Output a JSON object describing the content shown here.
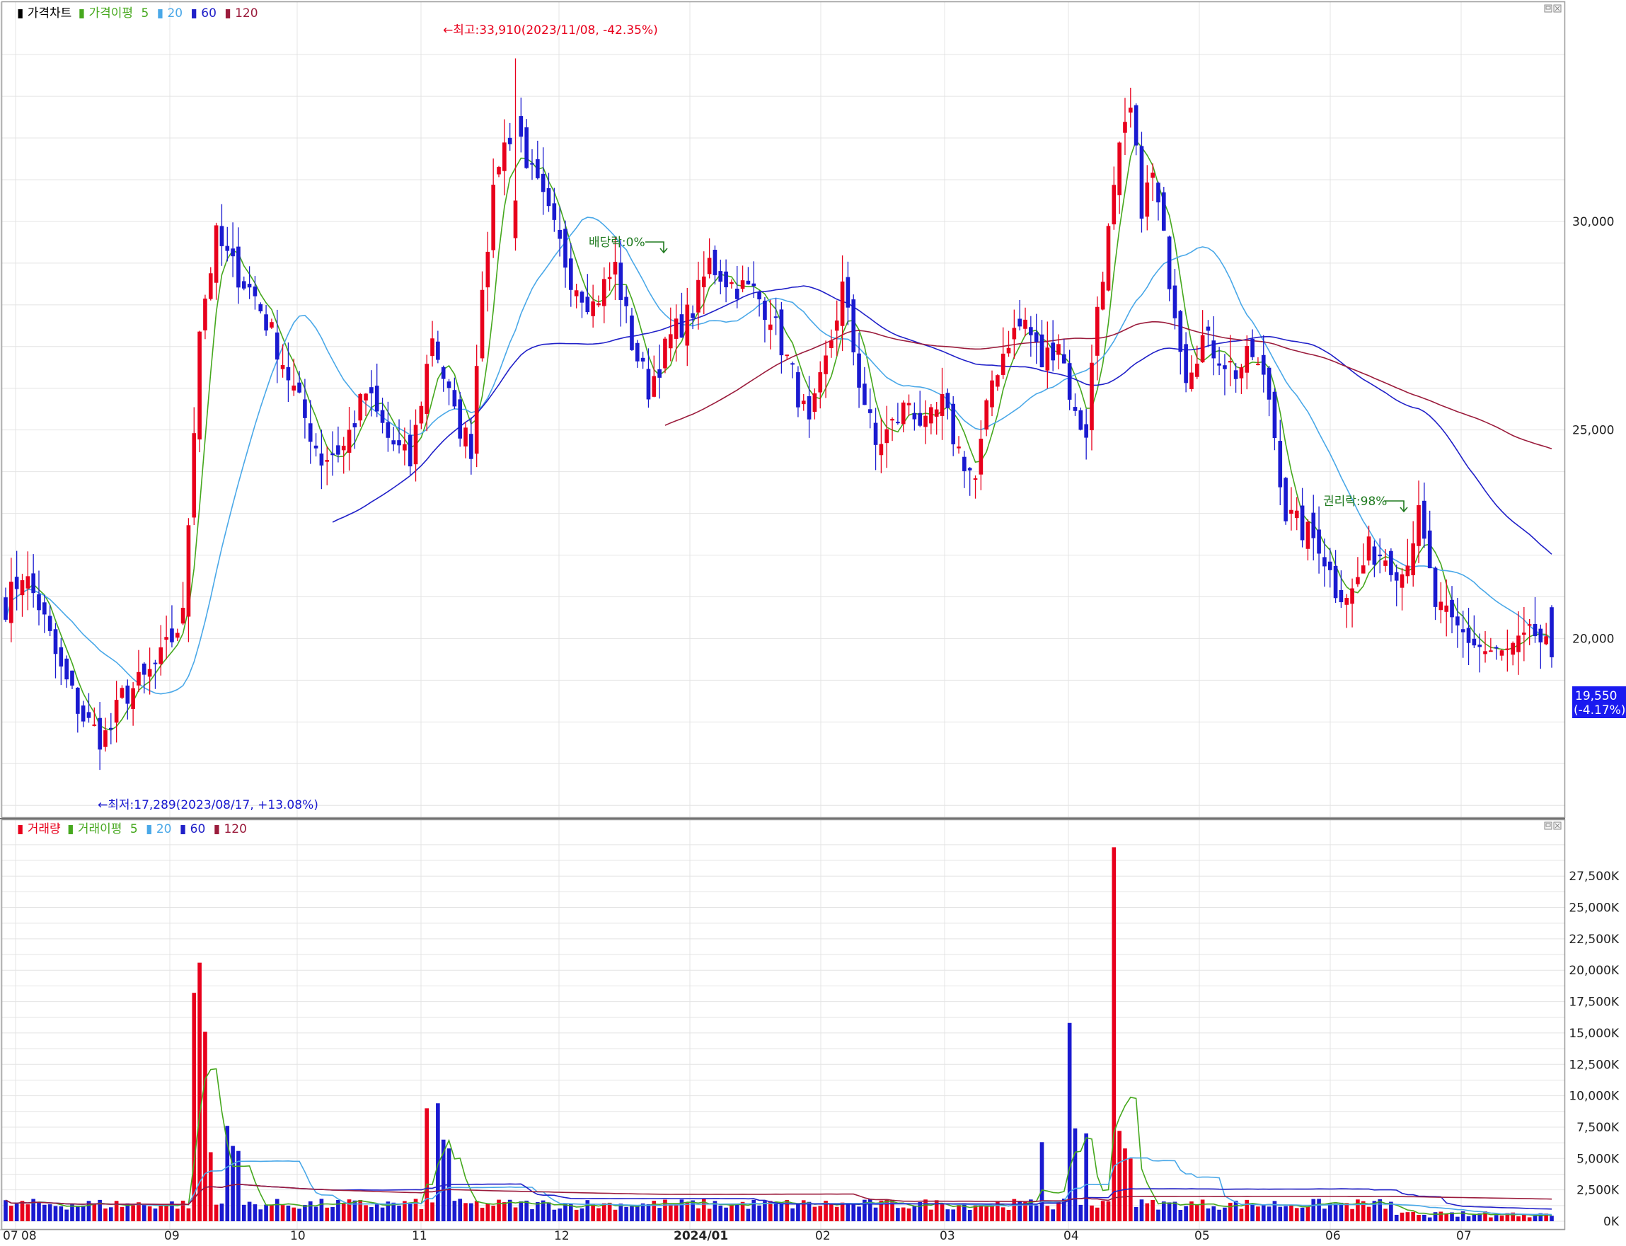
{
  "colors": {
    "up": "#e8001c",
    "down": "#1a1ad0",
    "ma5": "#46a81e",
    "ma20": "#4aa8e8",
    "ma60": "#2020c8",
    "ma120": "#9b1c3c",
    "grid": "#e4e4e4",
    "last_label_bg": "#1a1af0"
  },
  "price_panel": {
    "legend": {
      "title": "가격차트",
      "ma_label": "가격이평",
      "p5": "5",
      "p20": "20",
      "p60": "60",
      "p120": "120"
    },
    "y_ticks": [
      "20,000",
      "25,000",
      "30,000"
    ],
    "annotations": {
      "high": "←최고:33,910(2023/11/08, -42.35%)",
      "low": "←최저:17,289(2023/08/17, +13.08%)",
      "dividend": "배당락:0%",
      "rights": "권리락:98%"
    },
    "last_price": "19,550",
    "last_change": "(-4.17%)"
  },
  "volume_panel": {
    "legend": {
      "title": "거래량",
      "ma_label": "거래이평",
      "p5": "5",
      "p20": "20",
      "p60": "60",
      "p120": "120"
    },
    "y_ticks": [
      "0K",
      "2,500K",
      "5,000K",
      "7,500K",
      "10,000K",
      "12,500K",
      "15,000K",
      "17,500K",
      "20,000K",
      "22,500K",
      "25,000K",
      "27,500K"
    ]
  },
  "x_ticks": [
    "07",
    "08",
    "09",
    "10",
    "11",
    "12",
    "2024/01",
    "02",
    "03",
    "04",
    "05",
    "06",
    "07"
  ],
  "chart_data": {
    "type": "candlestick",
    "price_range": [
      15800,
      34800
    ],
    "volume_range_k": [
      0,
      30500
    ],
    "anchors": [
      [
        0,
        20800
      ],
      [
        3,
        21600
      ],
      [
        6,
        20800
      ],
      [
        10,
        19200
      ],
      [
        14,
        18100
      ],
      [
        18,
        17500
      ],
      [
        21,
        18600
      ],
      [
        25,
        19000
      ],
      [
        28,
        19500
      ],
      [
        32,
        20500
      ],
      [
        35,
        27500
      ],
      [
        38,
        29600
      ],
      [
        41,
        28900
      ],
      [
        45,
        28200
      ],
      [
        49,
        27000
      ],
      [
        53,
        25600
      ],
      [
        57,
        24300
      ],
      [
        61,
        24600
      ],
      [
        65,
        25900
      ],
      [
        69,
        24800
      ],
      [
        73,
        24200
      ],
      [
        77,
        27300
      ],
      [
        81,
        25300
      ],
      [
        84,
        24600
      ],
      [
        86,
        28600
      ],
      [
        89,
        31500
      ],
      [
        92,
        32400
      ],
      [
        95,
        31100
      ],
      [
        98,
        30100
      ],
      [
        102,
        28700
      ],
      [
        106,
        28000
      ],
      [
        110,
        28900
      ],
      [
        113,
        27100
      ],
      [
        116,
        26000
      ],
      [
        120,
        27200
      ],
      [
        124,
        27900
      ],
      [
        127,
        29000
      ],
      [
        131,
        28500
      ],
      [
        135,
        28300
      ],
      [
        138,
        27800
      ],
      [
        142,
        26300
      ],
      [
        145,
        25000
      ],
      [
        148,
        26600
      ],
      [
        151,
        28400
      ],
      [
        154,
        26200
      ],
      [
        157,
        24600
      ],
      [
        160,
        25100
      ],
      [
        163,
        25700
      ],
      [
        166,
        25000
      ],
      [
        169,
        25600
      ],
      [
        172,
        24500
      ],
      [
        175,
        23800
      ],
      [
        178,
        26200
      ],
      [
        181,
        27200
      ],
      [
        184,
        27600
      ],
      [
        187,
        26600
      ],
      [
        190,
        27200
      ],
      [
        193,
        25300
      ],
      [
        195,
        25000
      ],
      [
        197,
        28000
      ],
      [
        199,
        29700
      ],
      [
        201,
        31600
      ],
      [
        203,
        32600
      ],
      [
        205,
        30400
      ],
      [
        207,
        31100
      ],
      [
        210,
        28700
      ],
      [
        213,
        26400
      ],
      [
        216,
        27200
      ],
      [
        219,
        26800
      ],
      [
        222,
        26400
      ],
      [
        225,
        26800
      ],
      [
        228,
        25800
      ],
      [
        231,
        23000
      ],
      [
        234,
        22600
      ],
      [
        237,
        22300
      ],
      [
        240,
        21200
      ],
      [
        243,
        21100
      ],
      [
        246,
        22100
      ],
      [
        249,
        22000
      ],
      [
        252,
        21600
      ],
      [
        255,
        22900
      ],
      [
        258,
        20800
      ],
      [
        261,
        20300
      ],
      [
        264,
        20000
      ],
      [
        267,
        19700
      ],
      [
        270,
        19600
      ],
      [
        273,
        19800
      ],
      [
        276,
        20100
      ],
      [
        279,
        19550
      ]
    ],
    "fixed_candles": [
      [
        18,
        17800,
        17289
      ],
      [
        92,
        30500,
        33910
      ]
    ],
    "volume_spikes_k": [
      [
        34,
        18200
      ],
      [
        35,
        20600
      ],
      [
        36,
        15100
      ],
      [
        37,
        5500
      ],
      [
        40,
        7600
      ],
      [
        41,
        6000
      ],
      [
        42,
        5600
      ],
      [
        76,
        9000
      ],
      [
        78,
        9400
      ],
      [
        79,
        6500
      ],
      [
        80,
        5800
      ],
      [
        187,
        6300
      ],
      [
        192,
        15800
      ],
      [
        193,
        7400
      ],
      [
        195,
        7000
      ],
      [
        200,
        29800
      ],
      [
        201,
        7200
      ],
      [
        202,
        5800
      ],
      [
        203,
        5000
      ]
    ]
  }
}
